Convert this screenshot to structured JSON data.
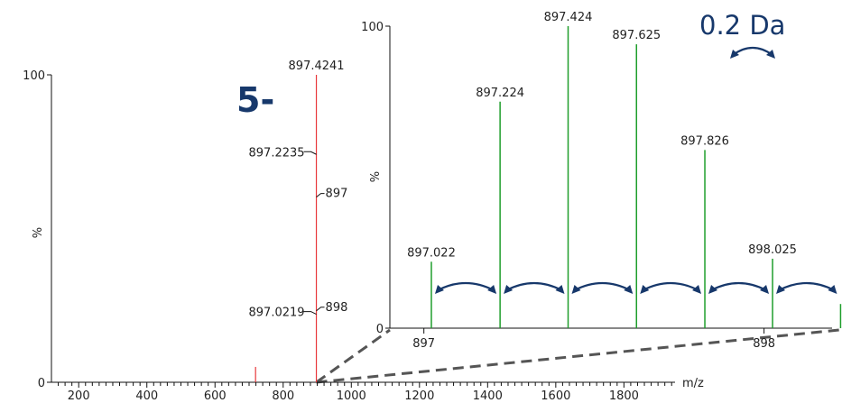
{
  "colors": {
    "main_peaks": "#e8373b",
    "inset_peaks": "#1f9e2c",
    "annotation": "#17386b",
    "zoom_lines": "#555555",
    "axis": "#111111"
  },
  "annotations": {
    "charge_state": "5-",
    "isotope_spacing": "0.2 Da",
    "spacing_arrows": 6
  },
  "chart_data": [
    {
      "id": "full_spectrum",
      "type": "bar",
      "xlabel": "m/z",
      "ylabel": "%",
      "xlim": [
        120,
        1950
      ],
      "ylim": [
        0,
        100
      ],
      "x_ticks": [
        200,
        400,
        600,
        800,
        1000,
        1200,
        1400,
        1600,
        1800
      ],
      "y_ticks": [
        0,
        100
      ],
      "minor_tick_step": 20,
      "peaks": [
        {
          "x": 719,
          "y": 5
        },
        {
          "x": 897.4241,
          "y": 100
        }
      ],
      "peak_labels": [
        {
          "text": "897.4241",
          "y": 100,
          "leader": false
        },
        {
          "text": "897.2235",
          "y": 75,
          "leader": true
        },
        {
          "text": "897",
          "y": 62,
          "leader": true
        },
        {
          "text": "897.0219",
          "y": 23,
          "leader": true
        },
        {
          "text": "898",
          "y": 25,
          "leader": true
        }
      ]
    },
    {
      "id": "isotope_zoom",
      "type": "bar",
      "xlabel": "",
      "ylabel": "%",
      "xlim": [
        896.9,
        898.2
      ],
      "ylim": [
        0,
        100
      ],
      "x_ticks": [
        897,
        898
      ],
      "y_ticks": [
        0,
        100
      ],
      "peaks": [
        {
          "x": 897.022,
          "y": 22,
          "label": "897.022"
        },
        {
          "x": 897.224,
          "y": 75,
          "label": "897.224"
        },
        {
          "x": 897.424,
          "y": 100,
          "label": "897.424"
        },
        {
          "x": 897.625,
          "y": 94,
          "label": "897.625"
        },
        {
          "x": 897.826,
          "y": 59,
          "label": "897.826"
        },
        {
          "x": 898.025,
          "y": 23,
          "label": "898.025"
        },
        {
          "x": 898.225,
          "y": 8
        }
      ]
    }
  ]
}
